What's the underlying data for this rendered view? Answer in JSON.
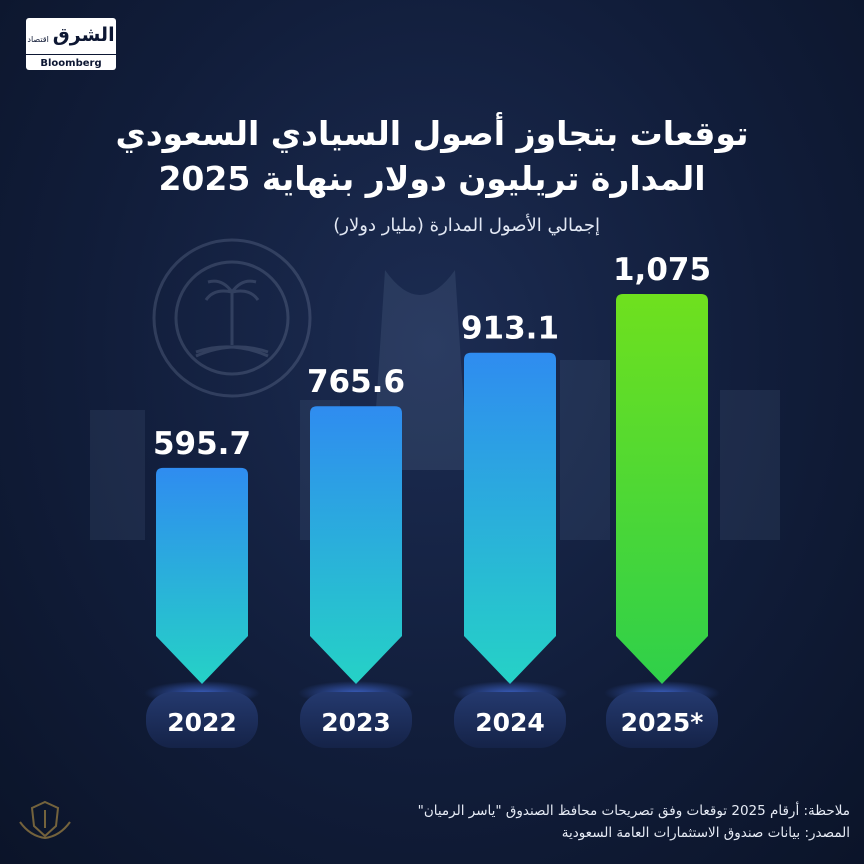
{
  "logo": {
    "arabic": "الشرق",
    "arabic_sub": "اقتصاد",
    "bloomberg": "Bloomberg"
  },
  "title": {
    "line1": "توقعات بتجاوز أصول السيادي السعودي",
    "line2": "المدارة تريليون دولار بنهاية 2025"
  },
  "subtitle": "إجمالي الأصول المدارة (مليار دولار)",
  "chart_data": {
    "type": "bar",
    "title": "توقعات بتجاوز أصول السيادي السعودي المدارة تريليون دولار بنهاية 2025",
    "ylabel": "إجمالي الأصول المدارة (مليار دولار)",
    "xlabel": "",
    "categories": [
      "2022",
      "2023",
      "2024",
      "2025*"
    ],
    "values": [
      595.7,
      765.6,
      913.1,
      1075
    ],
    "value_labels": [
      "595.7",
      "765.6",
      "913.1",
      "1,075"
    ],
    "ylim": [
      0,
      1200
    ],
    "grid": false,
    "colors": {
      "actual_top": "#2f8cf0",
      "actual_bottom": "#25d2c6",
      "forecast_top": "#6fe01e",
      "forecast_bottom": "#2fd04a"
    }
  },
  "notes": {
    "note": "ملاحظة: أرقام 2025 توقعات وفق تصريحات محافظ الصندوق \"ياسر الرميان\"",
    "source": "المصدر: بيانات صندوق الاستثمارات العامة السعودية"
  }
}
